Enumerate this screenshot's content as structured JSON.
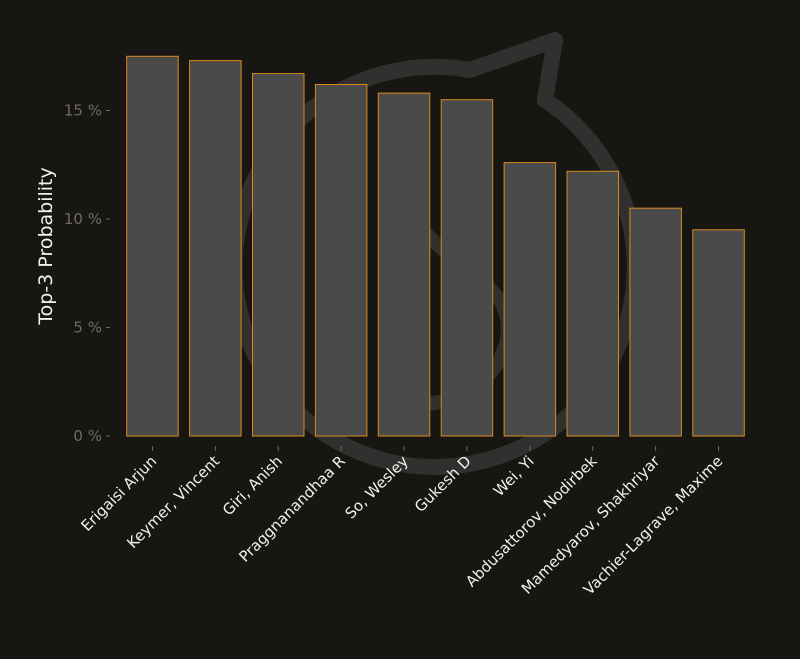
{
  "chart_data": {
    "type": "bar",
    "ylabel": "Top-3 Probability",
    "ylim": [
      0,
      18
    ],
    "yticks": [
      0,
      5,
      10,
      15
    ],
    "ytick_labels": [
      "0 %",
      "5 %",
      "10 %",
      "15 %"
    ],
    "grid": false,
    "categories": [
      "Erigaisi Arjun",
      "Keymer, Vincent",
      "Giri, Anish",
      "Praggnanandhaa R",
      "So, Wesley",
      "Gukesh D",
      "Wei, Yi",
      "Abdusattorov, Nodirbek",
      "Mamedyarov, Shakhriyar",
      "Vachier-Lagrave, Maxime"
    ],
    "values": [
      17.5,
      17.3,
      16.7,
      16.2,
      15.8,
      15.5,
      12.6,
      12.2,
      10.5,
      9.5
    ],
    "colors": {
      "background": "#181613",
      "bar_fill": "#4a4a4a",
      "bar_edge": "#d9891c",
      "watermark": "#3a3836"
    }
  }
}
